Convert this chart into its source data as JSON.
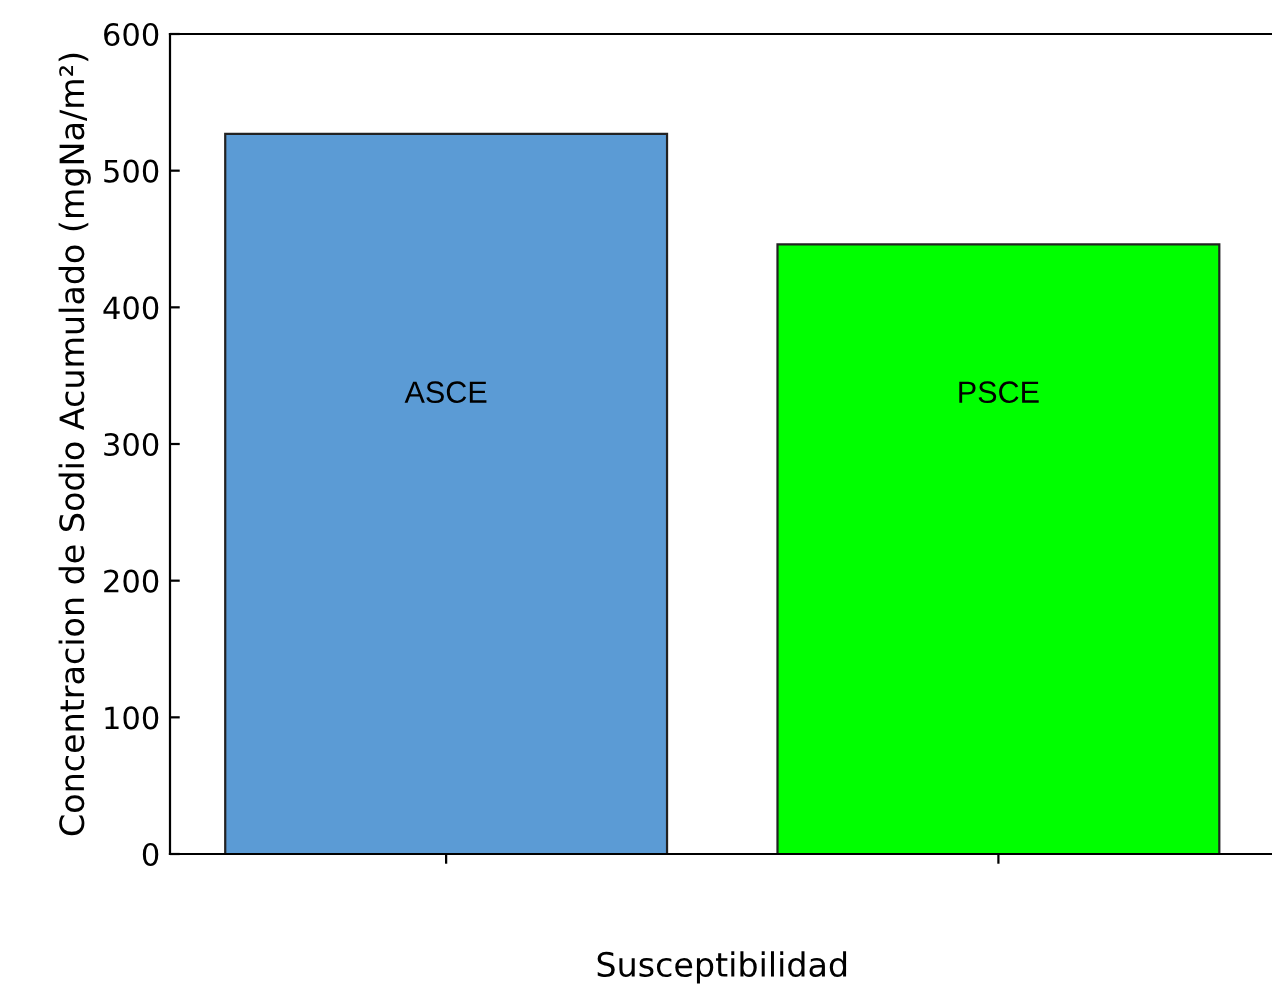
{
  "chart_data": {
    "type": "bar",
    "xlabel": "Susceptibilidad",
    "ylabel": "Concentracion de Sodio Acumulado (mgNa/m²)",
    "categories": [
      "ASCE",
      "PSCE"
    ],
    "values": [
      527,
      446
    ],
    "colors": [
      "#5b9bd5",
      "#00ff00"
    ],
    "ylim": [
      0,
      600
    ],
    "yticks": [
      0,
      100,
      200,
      300,
      400,
      500,
      600
    ],
    "grid": false,
    "legend": false
  }
}
